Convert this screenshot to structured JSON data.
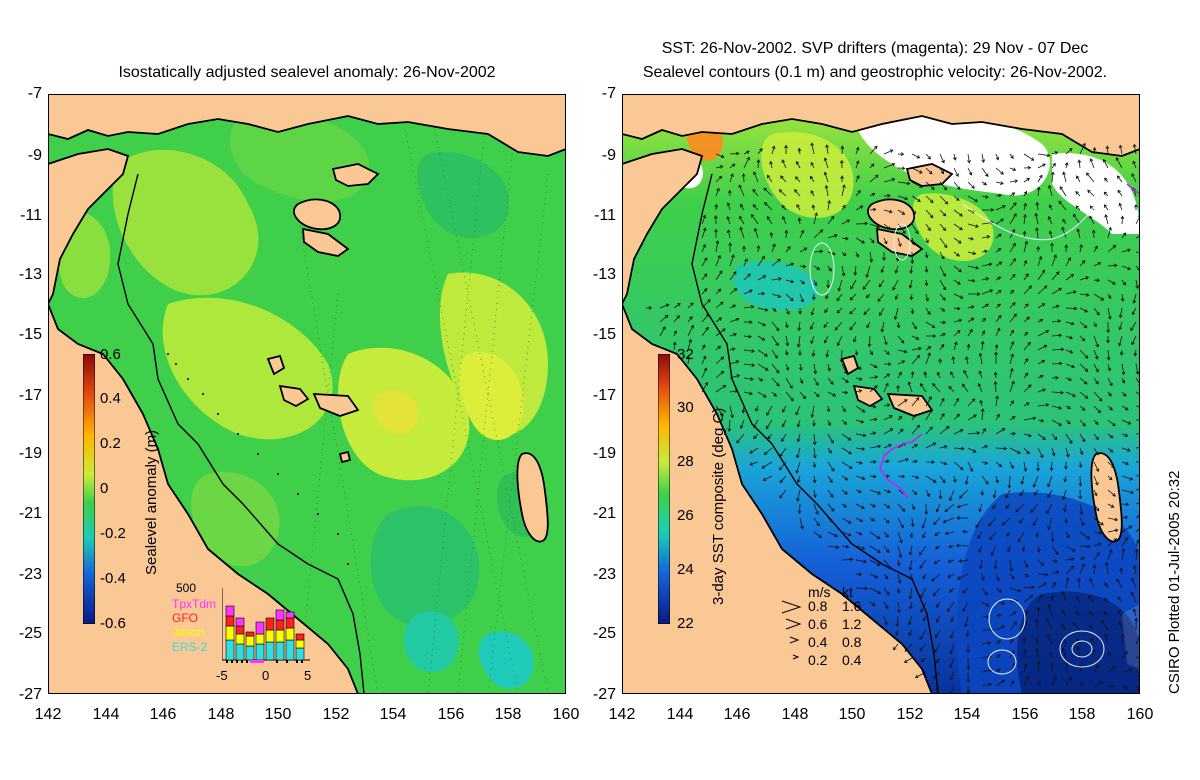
{
  "left_panel": {
    "title": "Isostatically adjusted sealevel anomaly: 26-Nov-2002",
    "colorbar": {
      "label": "Sealevel anomaly (m)",
      "ticks": [
        "0.6",
        "0.4",
        "0.2",
        "0",
        "-0.2",
        "-0.4",
        "-0.6"
      ],
      "range": [
        -0.6,
        0.6
      ]
    },
    "inset": {
      "count_label": "500",
      "missions": [
        {
          "name": "TpxTdm",
          "color": "#ff33ff"
        },
        {
          "name": "GFO",
          "color": "#ff2020"
        },
        {
          "name": "Jason",
          "color": "#ffff00"
        },
        {
          "name": "ERS-2",
          "color": "#33dddd"
        }
      ],
      "x_ticks": [
        "-5",
        "0",
        "5"
      ]
    }
  },
  "right_panel": {
    "title_line1": "SST: 26-Nov-2002. SVP drifters (magenta): 29 Nov - 07 Dec",
    "title_line2": "Sealevel contours (0.1 m) and geostrophic velocity: 26-Nov-2002.",
    "colorbar": {
      "label": "3-day SST composite (deg C)",
      "ticks": [
        "32",
        "30",
        "28",
        "26",
        "24",
        "22"
      ],
      "range": [
        22,
        32
      ]
    },
    "speed_legend": {
      "header": [
        "m/s",
        "kt"
      ],
      "rows": [
        {
          "ms": "0.8",
          "kt": "1.6"
        },
        {
          "ms": "0.6",
          "kt": "1.2"
        },
        {
          "ms": "0.4",
          "kt": "0.8"
        },
        {
          "ms": "0.2",
          "kt": "0.4"
        }
      ]
    }
  },
  "axes": {
    "lat_ticks": [
      "-7",
      "-9",
      "-11",
      "-13",
      "-15",
      "-17",
      "-19",
      "-21",
      "-23",
      "-25",
      "-27"
    ],
    "lon_ticks": [
      "142",
      "144",
      "146",
      "148",
      "150",
      "152",
      "154",
      "156",
      "158",
      "160"
    ],
    "lon_range": [
      142,
      160
    ],
    "lat_range": [
      -27,
      -7
    ]
  },
  "credit": "CSIRO Plotted 01-Jul-2005 20:32",
  "colors": {
    "land": "#f9c895",
    "ocean_green": "#3fcf4a",
    "ocean_yellow": "#c9ec3c",
    "sst_blue": "#1560d8",
    "sst_deep": "#08339e"
  }
}
